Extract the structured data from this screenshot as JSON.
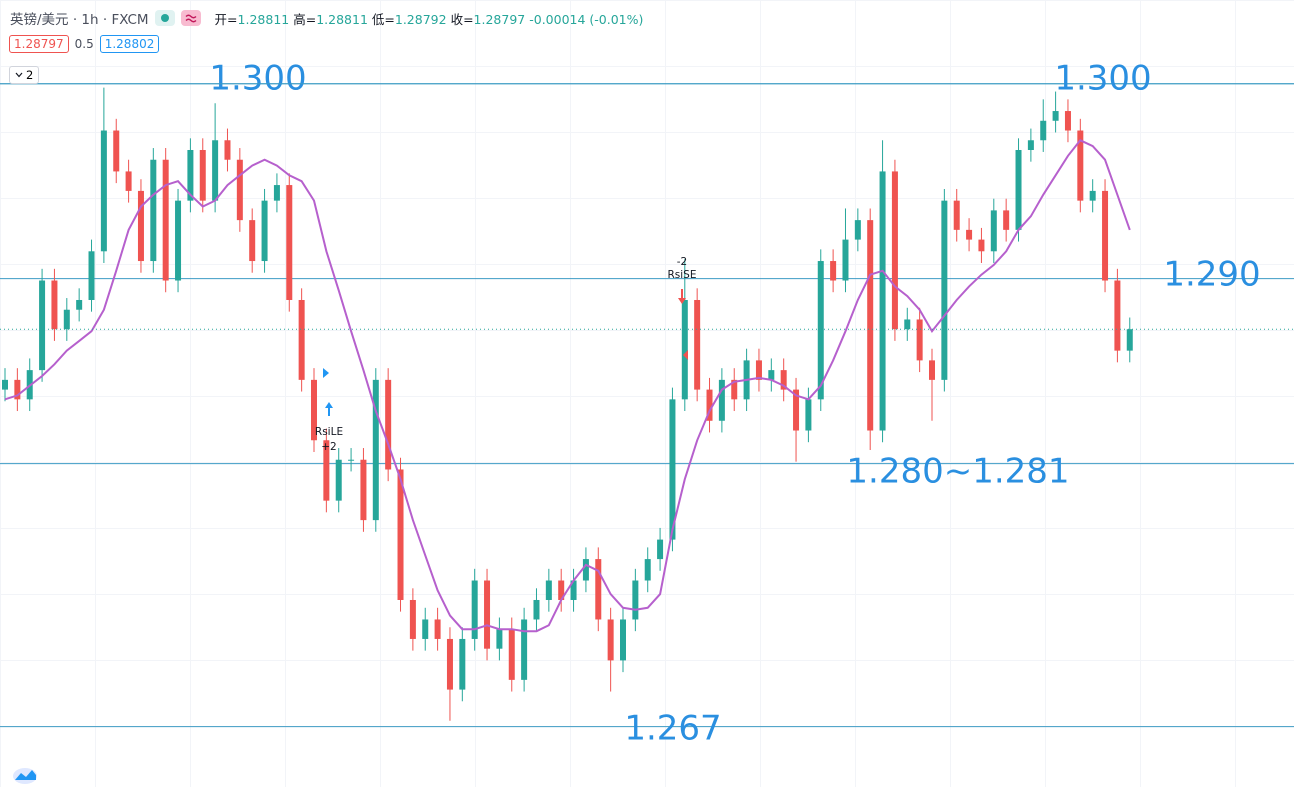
{
  "header": {
    "title": "英镑/美元 · 1h · FXCM",
    "quote": [
      {
        "label": "开=",
        "value": "1.28811"
      },
      {
        "label": "高=",
        "value": "1.28811"
      },
      {
        "label": "低=",
        "value": "1.28792"
      },
      {
        "label": "收=",
        "value": "1.28797"
      }
    ],
    "change": "-0.00014 (-0.01%)",
    "sell": "1.28797",
    "spread": "0.5",
    "buy": "1.28802",
    "collapsed": "2"
  },
  "chart_data": {
    "type": "candlestick",
    "ylim": [
      1.2639,
      1.3043
    ],
    "colors": {
      "up": "#26a69a",
      "down": "#ef5350"
    },
    "ohlc": [
      [
        1.2843,
        1.2854,
        1.2837,
        1.2848
      ],
      [
        1.2848,
        1.2854,
        1.2832,
        1.2838
      ],
      [
        1.2838,
        1.2859,
        1.2832,
        1.2853
      ],
      [
        1.2853,
        1.2905,
        1.2847,
        1.2899
      ],
      [
        1.2899,
        1.2905,
        1.2868,
        1.2874
      ],
      [
        1.2874,
        1.289,
        1.2868,
        1.2884
      ],
      [
        1.2884,
        1.2895,
        1.2878,
        1.2889
      ],
      [
        1.2889,
        1.292,
        1.2883,
        1.2914
      ],
      [
        1.2914,
        1.2998,
        1.2908,
        1.2976
      ],
      [
        1.2976,
        1.2982,
        1.2949,
        1.2955
      ],
      [
        1.2955,
        1.2961,
        1.2939,
        1.2945
      ],
      [
        1.2945,
        1.2951,
        1.2903,
        1.2909
      ],
      [
        1.2909,
        1.2967,
        1.2903,
        1.2961
      ],
      [
        1.2961,
        1.2967,
        1.2893,
        1.2899
      ],
      [
        1.2899,
        1.2946,
        1.2893,
        1.294
      ],
      [
        1.294,
        1.2972,
        1.2934,
        1.2966
      ],
      [
        1.2966,
        1.2972,
        1.2934,
        1.294
      ],
      [
        1.294,
        1.299,
        1.2934,
        1.2971
      ],
      [
        1.2971,
        1.2977,
        1.2955,
        1.2961
      ],
      [
        1.2961,
        1.2967,
        1.2924,
        1.293
      ],
      [
        1.293,
        1.2936,
        1.2903,
        1.2909
      ],
      [
        1.2909,
        1.2946,
        1.2903,
        1.294
      ],
      [
        1.294,
        1.2954,
        1.2934,
        1.2948
      ],
      [
        1.2948,
        1.2954,
        1.2883,
        1.2889
      ],
      [
        1.2889,
        1.2895,
        1.2842,
        1.2848
      ],
      [
        1.2848,
        1.2854,
        1.2811,
        1.2817
      ],
      [
        1.2817,
        1.2823,
        1.278,
        1.2786
      ],
      [
        1.2786,
        1.2813,
        1.278,
        1.2807
      ],
      [
        1.2807,
        1.2813,
        1.2801,
        1.2807
      ],
      [
        1.2807,
        1.2813,
        1.277,
        1.2776
      ],
      [
        1.2776,
        1.2854,
        1.277,
        1.2848
      ],
      [
        1.2848,
        1.2854,
        1.2796,
        1.2802
      ],
      [
        1.2802,
        1.2808,
        1.2729,
        1.2735
      ],
      [
        1.2735,
        1.2741,
        1.2709,
        1.2715
      ],
      [
        1.2715,
        1.2731,
        1.2709,
        1.2725
      ],
      [
        1.2725,
        1.2731,
        1.2709,
        1.2715
      ],
      [
        1.2715,
        1.2721,
        1.2673,
        1.2689
      ],
      [
        1.2689,
        1.2721,
        1.2683,
        1.2715
      ],
      [
        1.2715,
        1.2751,
        1.2709,
        1.2745
      ],
      [
        1.2745,
        1.2751,
        1.2704,
        1.271
      ],
      [
        1.271,
        1.2726,
        1.2704,
        1.272
      ],
      [
        1.272,
        1.2726,
        1.2688,
        1.2694
      ],
      [
        1.2694,
        1.2731,
        1.2688,
        1.2725
      ],
      [
        1.2725,
        1.2741,
        1.2719,
        1.2735
      ],
      [
        1.2735,
        1.2751,
        1.2729,
        1.2745
      ],
      [
        1.2745,
        1.2751,
        1.2729,
        1.2735
      ],
      [
        1.2735,
        1.2751,
        1.2729,
        1.2745
      ],
      [
        1.2745,
        1.2762,
        1.2739,
        1.2756
      ],
      [
        1.2756,
        1.2762,
        1.2719,
        1.2725
      ],
      [
        1.2725,
        1.2731,
        1.2688,
        1.2704
      ],
      [
        1.2704,
        1.2731,
        1.2698,
        1.2725
      ],
      [
        1.2725,
        1.2751,
        1.2719,
        1.2745
      ],
      [
        1.2745,
        1.2762,
        1.2739,
        1.2756
      ],
      [
        1.2756,
        1.2772,
        1.275,
        1.2766
      ],
      [
        1.2766,
        1.2844,
        1.276,
        1.2838
      ],
      [
        1.2838,
        1.291,
        1.2832,
        1.2889
      ],
      [
        1.2889,
        1.2895,
        1.2837,
        1.2843
      ],
      [
        1.2843,
        1.2849,
        1.2821,
        1.2827
      ],
      [
        1.2827,
        1.2854,
        1.2821,
        1.2848
      ],
      [
        1.2848,
        1.2854,
        1.2832,
        1.2838
      ],
      [
        1.2838,
        1.2864,
        1.2832,
        1.2858
      ],
      [
        1.2858,
        1.2864,
        1.2842,
        1.2848
      ],
      [
        1.2848,
        1.2859,
        1.2842,
        1.2853
      ],
      [
        1.2853,
        1.2859,
        1.2837,
        1.2843
      ],
      [
        1.2843,
        1.2849,
        1.2806,
        1.2822
      ],
      [
        1.2822,
        1.2844,
        1.2816,
        1.2838
      ],
      [
        1.2838,
        1.2915,
        1.2832,
        1.2909
      ],
      [
        1.2909,
        1.2915,
        1.2893,
        1.2899
      ],
      [
        1.2899,
        1.2936,
        1.2893,
        1.292
      ],
      [
        1.292,
        1.2936,
        1.2914,
        1.293
      ],
      [
        1.293,
        1.2936,
        1.2812,
        1.2822
      ],
      [
        1.2822,
        1.2971,
        1.2816,
        1.2955
      ],
      [
        1.2955,
        1.2961,
        1.2868,
        1.2874
      ],
      [
        1.2874,
        1.2885,
        1.2868,
        1.2879
      ],
      [
        1.2879,
        1.2885,
        1.2852,
        1.2858
      ],
      [
        1.2858,
        1.2864,
        1.2827,
        1.2848
      ],
      [
        1.2848,
        1.2946,
        1.2842,
        1.294
      ],
      [
        1.294,
        1.2946,
        1.2919,
        1.2925
      ],
      [
        1.2925,
        1.2931,
        1.2914,
        1.292
      ],
      [
        1.292,
        1.2926,
        1.2908,
        1.2914
      ],
      [
        1.2914,
        1.2941,
        1.2908,
        1.2935
      ],
      [
        1.2935,
        1.2941,
        1.2919,
        1.2925
      ],
      [
        1.2925,
        1.2972,
        1.2919,
        1.2966
      ],
      [
        1.2966,
        1.2977,
        1.296,
        1.2971
      ],
      [
        1.2971,
        1.2992,
        1.2965,
        1.2981
      ],
      [
        1.2981,
        1.2996,
        1.2975,
        1.2986
      ],
      [
        1.2986,
        1.2992,
        1.297,
        1.2976
      ],
      [
        1.2976,
        1.2982,
        1.2934,
        1.294
      ],
      [
        1.294,
        1.2951,
        1.2934,
        1.2945
      ],
      [
        1.2945,
        1.2951,
        1.2893,
        1.2899
      ],
      [
        1.2899,
        1.2905,
        1.2857,
        1.2863
      ],
      [
        1.2863,
        1.288,
        1.2857,
        1.2874
      ]
    ],
    "ma": {
      "color": "#b660cd",
      "values": [
        1.2838,
        1.284,
        1.2845,
        1.285,
        1.2856,
        1.2863,
        1.2868,
        1.2873,
        1.2884,
        1.2904,
        1.2925,
        1.2937,
        1.2943,
        1.2948,
        1.295,
        1.2943,
        1.2937,
        1.294,
        1.2948,
        1.2953,
        1.2958,
        1.2961,
        1.2958,
        1.2953,
        1.295,
        1.294,
        1.2914,
        1.2894,
        1.2873,
        1.2853,
        1.2832,
        1.2815,
        1.2797,
        1.2776,
        1.2758,
        1.274,
        1.2727,
        1.272,
        1.272,
        1.2722,
        1.272,
        1.272,
        1.2719,
        1.2719,
        1.2722,
        1.2735,
        1.2745,
        1.2753,
        1.275,
        1.2738,
        1.2731,
        1.273,
        1.2731,
        1.2738,
        1.2771,
        1.2797,
        1.2817,
        1.2832,
        1.2843,
        1.2847,
        1.2848,
        1.2849,
        1.2848,
        1.2845,
        1.284,
        1.2838,
        1.2845,
        1.2858,
        1.2873,
        1.2889,
        1.2902,
        1.2904,
        1.2896,
        1.2891,
        1.2884,
        1.2873,
        1.2881,
        1.2889,
        1.2896,
        1.2902,
        1.2907,
        1.2914,
        1.2925,
        1.2932,
        1.2943,
        1.2953,
        1.2963,
        1.2971,
        1.2968,
        1.2961,
        1.2943,
        1.2925
      ]
    },
    "levels": [
      {
        "value": 1.3,
        "label": "1.300"
      },
      {
        "value": 1.3,
        "label": "1.300"
      },
      {
        "value": 1.29,
        "label": "1.290"
      },
      {
        "value": 1.2805,
        "label": "1.280~1.281"
      },
      {
        "value": 1.267,
        "label": "1.267"
      }
    ],
    "level_color": "#3d9bc4",
    "label_color": "#2a8fe0",
    "signals": [
      {
        "name": "RsiLE",
        "qty": "+2",
        "color": "#2196f3"
      },
      {
        "name": "RsiSE",
        "qty": "-2",
        "color": "#ef5350"
      }
    ]
  }
}
